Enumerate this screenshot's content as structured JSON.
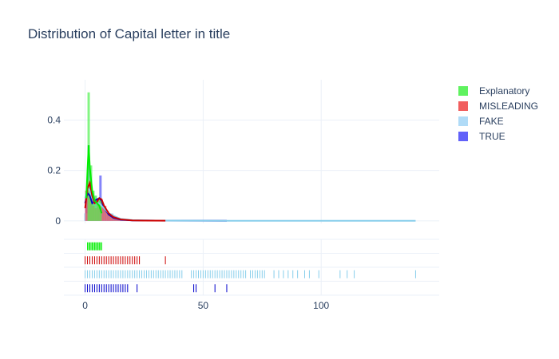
{
  "chart_data": {
    "type": "histogram",
    "title": "Distribution of Capital letter in title",
    "xlabel": "",
    "ylabel": "",
    "xlim": [
      -9,
      150
    ],
    "ylim": [
      -0.01,
      0.56
    ],
    "x_ticks": [
      0,
      50,
      100
    ],
    "y_ticks": [
      0,
      0.2,
      0.4
    ],
    "x_tick_labels": [
      "0",
      "50",
      "100"
    ],
    "y_tick_labels": [
      "0",
      "0.2",
      "0.4"
    ],
    "legend_position": "top-right",
    "grid": true,
    "series": [
      {
        "name": "Explanatory",
        "color": "#4ef14e",
        "rug_color": "#00ee00",
        "bars": [
          [
            1,
            2,
            0.51
          ],
          [
            2,
            3,
            0.22
          ],
          [
            3,
            4,
            0.12
          ],
          [
            4,
            5,
            0.1
          ],
          [
            5,
            6,
            0.08
          ],
          [
            6,
            7,
            0.09
          ]
        ],
        "curve": [
          [
            0.5,
            0.09
          ],
          [
            1,
            0.2
          ],
          [
            1.5,
            0.3
          ],
          [
            2,
            0.21
          ],
          [
            3,
            0.12
          ],
          [
            4,
            0.08
          ],
          [
            5,
            0.07
          ],
          [
            6,
            0.06
          ],
          [
            7,
            0.03
          ]
        ],
        "rug": [
          1,
          1.5,
          2,
          2.5,
          3,
          3.5,
          4,
          4.5,
          5,
          5.5,
          6,
          6.5,
          7
        ]
      },
      {
        "name": "MISLEADING",
        "color": "#ef4d4d",
        "rug_color": "#cc0000",
        "bars": [
          [
            0,
            1,
            0.12
          ],
          [
            1,
            2,
            0.16
          ],
          [
            2,
            3,
            0.1
          ],
          [
            3,
            4,
            0.06
          ],
          [
            4,
            5,
            0.05
          ],
          [
            5,
            6,
            0.07
          ],
          [
            6,
            7,
            0.08
          ],
          [
            7,
            8,
            0.07
          ],
          [
            8,
            9,
            0.06
          ],
          [
            9,
            10,
            0.04
          ],
          [
            10,
            12,
            0.025
          ],
          [
            12,
            14,
            0.015
          ],
          [
            14,
            17,
            0.008
          ],
          [
            17,
            20,
            0.004
          ],
          [
            20,
            34,
            0.002
          ]
        ],
        "curve": [
          [
            0,
            0.05
          ],
          [
            1,
            0.13
          ],
          [
            2,
            0.15
          ],
          [
            3,
            0.1
          ],
          [
            4,
            0.07
          ],
          [
            5,
            0.075
          ],
          [
            6,
            0.09
          ],
          [
            7,
            0.085
          ],
          [
            8,
            0.06
          ],
          [
            10,
            0.03
          ],
          [
            12,
            0.015
          ],
          [
            15,
            0.006
          ],
          [
            20,
            0.002
          ],
          [
            25,
            0.001
          ],
          [
            34,
            0.0005
          ]
        ],
        "rug": [
          0,
          1,
          2,
          3,
          4,
          5,
          6,
          7,
          8,
          9,
          10,
          11,
          12,
          13,
          14,
          15,
          16,
          17,
          18,
          19,
          20,
          21,
          22,
          23,
          34
        ]
      },
      {
        "name": "FAKE",
        "color": "#a7d7f6",
        "rug_color": "#87ceeb",
        "bars": [
          [
            -0.5,
            1,
            0.03
          ],
          [
            1,
            3,
            0.16
          ],
          [
            3,
            5,
            0.1
          ],
          [
            5,
            7,
            0.08
          ],
          [
            7,
            9,
            0.05
          ],
          [
            9,
            12,
            0.03
          ],
          [
            12,
            15,
            0.012
          ],
          [
            15,
            20,
            0.006
          ],
          [
            20,
            30,
            0.003
          ],
          [
            30,
            60,
            0.001
          ],
          [
            60,
            140,
            0.0005
          ]
        ],
        "curve": [
          [
            0,
            0.09
          ],
          [
            1,
            0.13
          ],
          [
            2,
            0.12
          ],
          [
            3,
            0.09
          ],
          [
            4,
            0.07
          ],
          [
            5,
            0.07
          ],
          [
            6,
            0.07
          ],
          [
            8,
            0.05
          ],
          [
            10,
            0.03
          ],
          [
            12,
            0.02
          ],
          [
            15,
            0.008
          ],
          [
            20,
            0.003
          ],
          [
            30,
            0.001
          ],
          [
            60,
            0.0004
          ],
          [
            140,
            0.0002
          ]
        ],
        "rug": [
          0,
          1,
          2,
          3,
          4,
          5,
          6,
          7,
          8,
          9,
          10,
          11,
          12,
          13,
          14,
          15,
          16,
          17,
          18,
          19,
          20,
          21,
          22,
          23,
          24,
          25,
          26,
          27,
          28,
          29,
          30,
          31,
          32,
          33,
          34,
          35,
          36,
          37,
          38,
          39,
          40,
          41,
          45,
          46,
          47,
          48,
          49,
          50,
          51,
          52,
          53,
          54,
          55,
          56,
          57,
          58,
          59,
          60,
          61,
          62,
          63,
          64,
          65,
          66,
          67,
          68,
          70,
          71,
          72,
          73,
          74,
          75,
          76,
          80,
          82,
          84,
          86,
          88,
          90,
          93,
          95,
          99,
          108,
          111,
          114,
          140
        ]
      },
      {
        "name": "TRUE",
        "color": "#5050f8",
        "rug_color": "#0000cc",
        "bars": [
          [
            0,
            1,
            0.1
          ],
          [
            1,
            2,
            0.3
          ],
          [
            2,
            3,
            0.14
          ],
          [
            3,
            4,
            0.08
          ],
          [
            4,
            5,
            0.07
          ],
          [
            5,
            6,
            0.08
          ],
          [
            6,
            7,
            0.18
          ],
          [
            7,
            8,
            0.06
          ],
          [
            8,
            9,
            0.04
          ],
          [
            9,
            11,
            0.025
          ],
          [
            11,
            14,
            0.012
          ],
          [
            14,
            18,
            0.005
          ],
          [
            18,
            25,
            0.002
          ],
          [
            25,
            60,
            0.001
          ]
        ],
        "curve": [
          [
            0,
            0.07
          ],
          [
            1,
            0.11
          ],
          [
            2,
            0.1
          ],
          [
            3,
            0.07
          ],
          [
            4,
            0.08
          ],
          [
            5,
            0.085
          ],
          [
            6,
            0.09
          ],
          [
            7,
            0.08
          ],
          [
            8,
            0.05
          ],
          [
            10,
            0.025
          ],
          [
            12,
            0.012
          ],
          [
            15,
            0.005
          ],
          [
            20,
            0.002
          ],
          [
            30,
            0.001
          ],
          [
            60,
            0.0004
          ]
        ],
        "rug": [
          0,
          1,
          2,
          3,
          4,
          5,
          6,
          7,
          8,
          9,
          10,
          11,
          12,
          13,
          14,
          15,
          16,
          17,
          18,
          22,
          46,
          47,
          55,
          60
        ]
      }
    ]
  }
}
